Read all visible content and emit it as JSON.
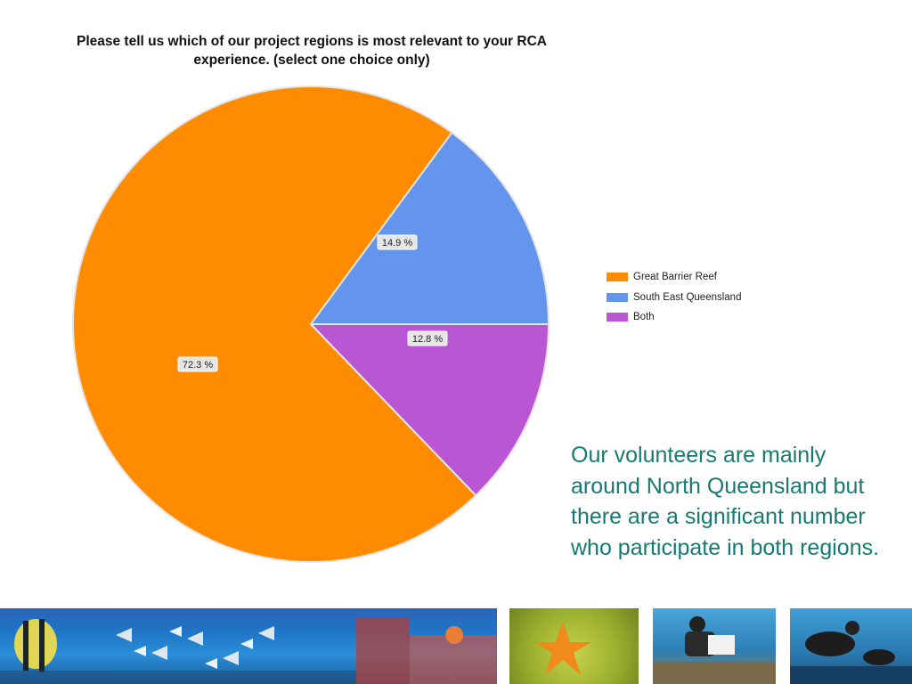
{
  "slide": {
    "commentary": "Our volunteers are mainly around North Queensland but there are a significant number who participate in both regions."
  },
  "chart_data": {
    "type": "pie",
    "title": "Please tell us which of our project regions is most relevant to your RCA experience. (select one choice only)",
    "categories": [
      "Great Barrier Reef",
      "South East Queensland",
      "Both"
    ],
    "values": [
      72.3,
      14.9,
      12.8
    ],
    "value_labels": [
      "72.3 %",
      "14.9 %",
      "12.8 %"
    ],
    "colors": [
      "#ff8c00",
      "#6495ed",
      "#ba55d3"
    ],
    "legend_position": "right"
  },
  "photos": [
    {
      "name": "reef-fish-banner"
    },
    {
      "name": "starfish"
    },
    {
      "name": "diver-survey"
    },
    {
      "name": "divers"
    }
  ]
}
